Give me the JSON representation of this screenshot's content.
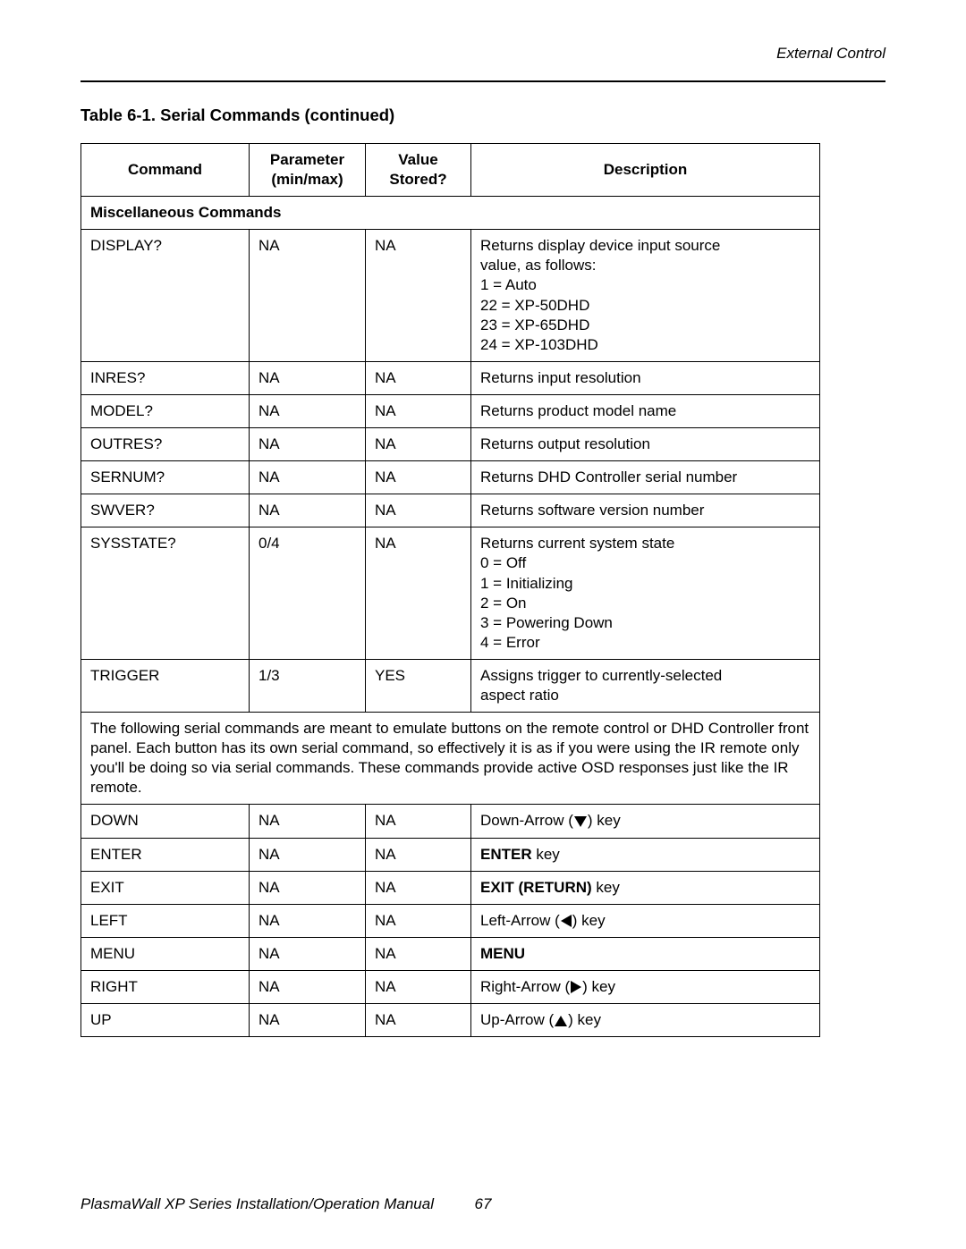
{
  "header": "External Control",
  "tableTitle": "Table 6-1. Serial Commands (continued)",
  "columns": {
    "command": "Command",
    "parameter": "Parameter\n(min/max)",
    "stored": "Value\nStored?",
    "description": "Description"
  },
  "sectionHeader": "Miscellaneous Commands",
  "rows1": [
    {
      "cmd": "DISPLAY?",
      "param": "NA",
      "stored": "NA",
      "desc": {
        "lines": [
          "Returns display device input source",
          "value, as follows:",
          "1 = Auto",
          "22 = XP-50DHD",
          "23 = XP-65DHD",
          "24 = XP-103DHD"
        ]
      }
    },
    {
      "cmd": "INRES?",
      "param": "NA",
      "stored": "NA",
      "desc": {
        "lines": [
          "Returns input resolution"
        ]
      }
    },
    {
      "cmd": "MODEL?",
      "param": "NA",
      "stored": "NA",
      "desc": {
        "lines": [
          "Returns product model name"
        ]
      }
    },
    {
      "cmd": "OUTRES?",
      "param": "NA",
      "stored": "NA",
      "desc": {
        "lines": [
          "Returns output resolution"
        ]
      }
    },
    {
      "cmd": "SERNUM?",
      "param": "NA",
      "stored": "NA",
      "desc": {
        "lines": [
          "Returns DHD Controller serial number"
        ]
      }
    },
    {
      "cmd": "SWVER?",
      "param": "NA",
      "stored": "NA",
      "desc": {
        "lines": [
          "Returns software version number"
        ]
      }
    },
    {
      "cmd": "SYSSTATE?",
      "param": "0/4",
      "stored": "NA",
      "desc": {
        "lines": [
          "Returns current system state",
          "0 = Off",
          "1 = Initializing",
          "2 = On",
          "3 = Powering Down",
          "4 = Error"
        ]
      }
    },
    {
      "cmd": "TRIGGER",
      "param": "1/3",
      "stored": "YES",
      "desc": {
        "lines": [
          "Assigns trigger to currently-selected",
          "aspect ratio"
        ]
      }
    }
  ],
  "note": "The following serial commands are meant to emulate buttons on the remote control or DHD Controller front panel. Each button has its own serial command, so effectively it is as if you were using the IR remote only you'll be doing so via serial commands. These commands provide active OSD responses just like the IR remote.",
  "rows2": [
    {
      "cmd": "DOWN",
      "param": "NA",
      "stored": "NA",
      "desc": {
        "pre": "Down-Arrow (",
        "icon": "down",
        "post": ") key"
      }
    },
    {
      "cmd": "ENTER",
      "param": "NA",
      "stored": "NA",
      "desc": {
        "bold": "ENTER",
        "post": " key"
      }
    },
    {
      "cmd": "EXIT",
      "param": "NA",
      "stored": "NA",
      "desc": {
        "bold": "EXIT (RETURN)",
        "post": " key"
      }
    },
    {
      "cmd": "LEFT",
      "param": "NA",
      "stored": "NA",
      "desc": {
        "pre": "Left-Arrow (",
        "icon": "left",
        "post": ") key"
      }
    },
    {
      "cmd": "MENU",
      "param": "NA",
      "stored": "NA",
      "desc": {
        "bold": "MENU"
      }
    },
    {
      "cmd": "RIGHT",
      "param": "NA",
      "stored": "NA",
      "desc": {
        "pre": "Right-Arrow (",
        "icon": "right",
        "post": ") key"
      }
    },
    {
      "cmd": "UP",
      "param": "NA",
      "stored": "NA",
      "desc": {
        "pre": "Up-Arrow (",
        "icon": "up",
        "post": ") key"
      }
    }
  ],
  "footer": {
    "left": "PlasmaWall XP Series Installation/Operation Manual",
    "page": "67"
  },
  "tablestyle": {
    "border_color": "#000000",
    "font_size": 17,
    "header_font_weight": "bold"
  }
}
